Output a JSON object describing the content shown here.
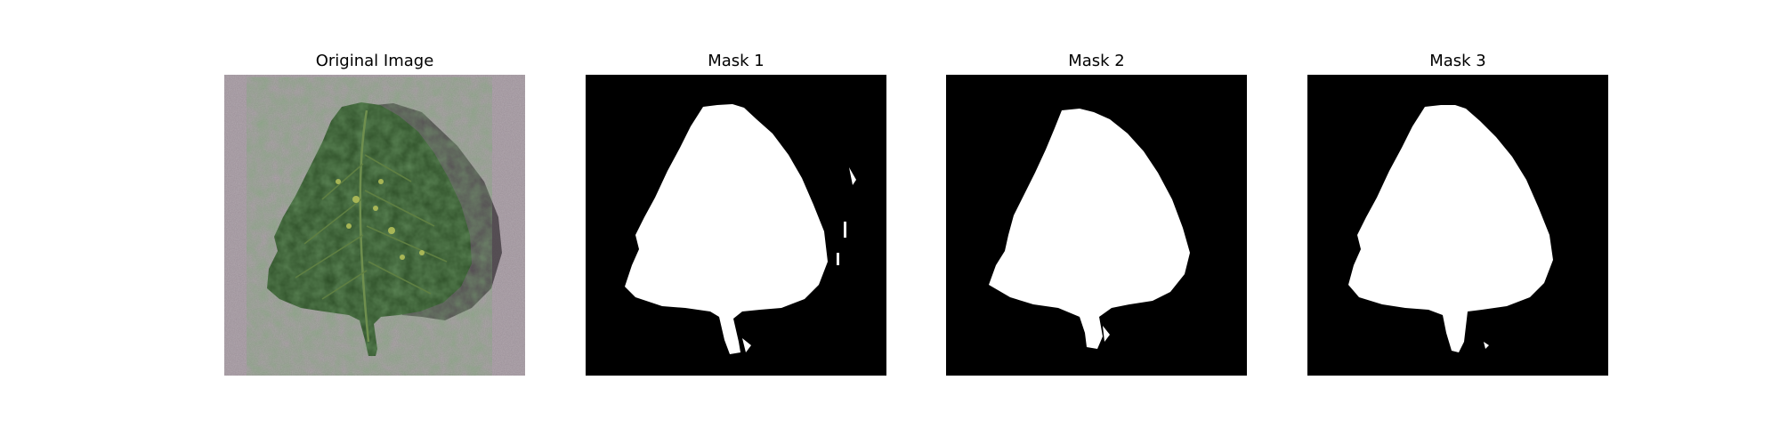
{
  "figure": {
    "panels": [
      {
        "title": "Original Image",
        "content": "tomato-leaf-photo"
      },
      {
        "title": "Mask 1",
        "content": "binary-mask"
      },
      {
        "title": "Mask 2",
        "content": "binary-mask"
      },
      {
        "title": "Mask 3",
        "content": "binary-mask"
      }
    ]
  },
  "colors": {
    "background": "#ffffff",
    "mask_background": "#000000",
    "mask_foreground": "#ffffff",
    "photo_background": "#9a8f97",
    "leaf_dark": "#1f3a1c",
    "leaf_mid": "#3f6f34",
    "leaf_vein": "#7d9b55",
    "leaf_spots": "#b9c35a"
  }
}
